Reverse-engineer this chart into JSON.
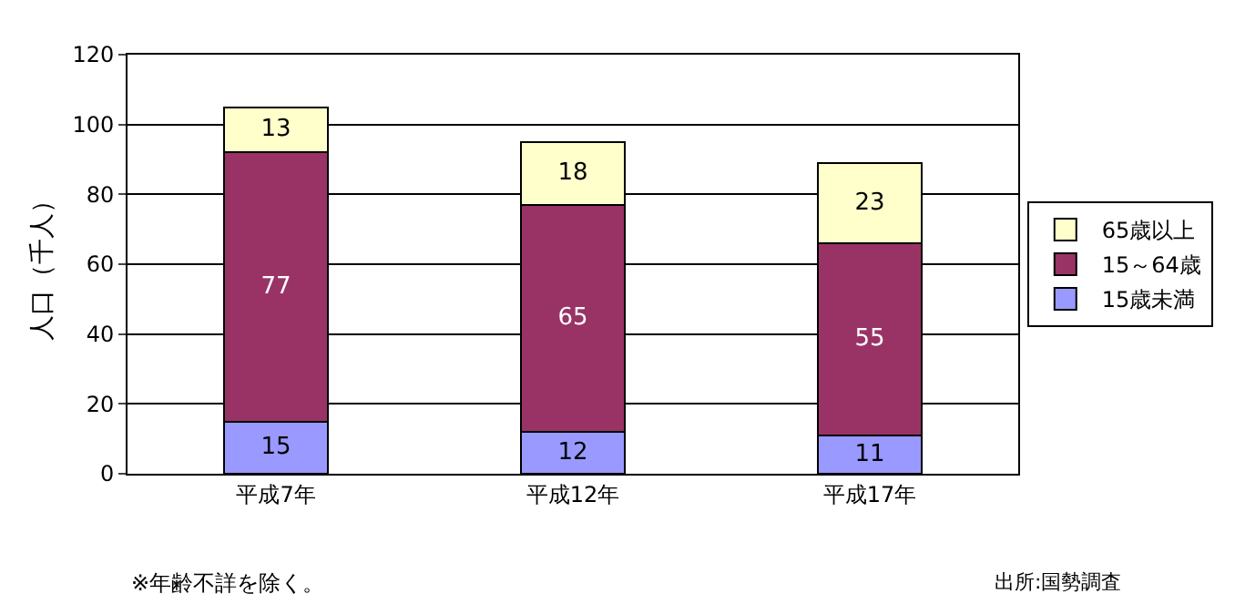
{
  "chart_data": {
    "type": "bar",
    "stacked": true,
    "ylabel": "人口（千人）",
    "categories": [
      "平成7年",
      "平成12年",
      "平成17年"
    ],
    "series": [
      {
        "name": "15歳未満",
        "color": "#9999ff",
        "values": [
          15,
          12,
          11
        ]
      },
      {
        "name": "15～64歳",
        "color": "#993366",
        "values": [
          77,
          65,
          55
        ]
      },
      {
        "name": "65歳以上",
        "color": "#ffffcc",
        "values": [
          13,
          18,
          23
        ]
      }
    ],
    "ylim": [
      0,
      120
    ],
    "yticks": [
      0,
      20,
      40,
      60,
      80,
      100,
      120
    ],
    "grid": "y",
    "legend": "right",
    "data_labels": true,
    "annotations": [
      "※年齢不詳を除く。",
      "出所:国勢調査"
    ]
  }
}
